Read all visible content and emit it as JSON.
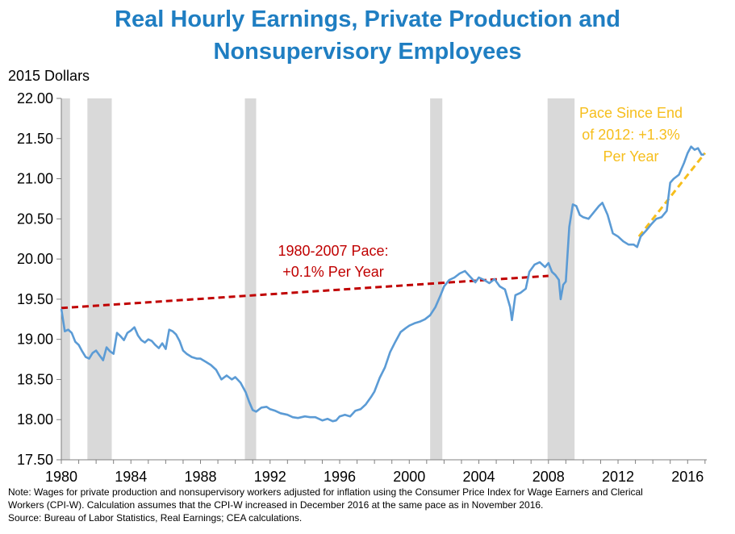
{
  "chart_data": {
    "type": "line",
    "title_lines": [
      "Real Hourly Earnings, Private Production and",
      "Nonsupervisory Employees"
    ],
    "ylabel": "2015 Dollars",
    "xlim": [
      1980,
      2017.1
    ],
    "ylim": [
      17.5,
      22.0
    ],
    "x_ticks": [
      "1980",
      "1984",
      "1988",
      "1992",
      "1996",
      "2000",
      "2004",
      "2008",
      "2012",
      "2016"
    ],
    "y_ticks": [
      "17.50",
      "18.00",
      "18.50",
      "19.00",
      "19.50",
      "20.00",
      "20.50",
      "21.00",
      "21.50",
      "22.00"
    ],
    "recessions": [
      [
        1980.0,
        1980.5
      ],
      [
        1981.5,
        1982.9
      ],
      [
        1990.55,
        1991.2
      ],
      [
        2001.2,
        2001.9
      ],
      [
        2007.95,
        2009.5
      ]
    ],
    "series": [
      {
        "color": "#5b9bd5",
        "x": [
          1980.0,
          1980.2,
          1980.4,
          1980.6,
          1980.8,
          1981.0,
          1981.2,
          1981.4,
          1981.6,
          1981.8,
          1982.0,
          1982.2,
          1982.4,
          1982.6,
          1982.8,
          1983.0,
          1983.2,
          1983.4,
          1983.6,
          1983.8,
          1984.0,
          1984.2,
          1984.4,
          1984.6,
          1984.8,
          1985.0,
          1985.2,
          1985.4,
          1985.6,
          1985.8,
          1986.0,
          1986.2,
          1986.4,
          1986.6,
          1986.8,
          1987.0,
          1987.2,
          1987.5,
          1987.8,
          1988.0,
          1988.3,
          1988.6,
          1988.9,
          1989.2,
          1989.5,
          1989.8,
          1990.0,
          1990.3,
          1990.6,
          1990.8,
          1991.0,
          1991.2,
          1991.5,
          1991.8,
          1992.0,
          1992.3,
          1992.6,
          1993.0,
          1993.3,
          1993.6,
          1994.0,
          1994.3,
          1994.6,
          1995.0,
          1995.3,
          1995.6,
          1995.8,
          1996.0,
          1996.3,
          1996.6,
          1996.9,
          1997.2,
          1997.5,
          1997.8,
          1998.0,
          1998.3,
          1998.6,
          1998.9,
          1999.2,
          1999.5,
          1999.8,
          2000.0,
          2000.3,
          2000.6,
          2000.9,
          2001.2,
          2001.5,
          2001.8,
          2002.0,
          2002.3,
          2002.6,
          2002.9,
          2003.2,
          2003.5,
          2003.8,
          2004.0,
          2004.3,
          2004.6,
          2004.9,
          2005.2,
          2005.5,
          2005.8,
          2005.9,
          2006.1,
          2006.4,
          2006.7,
          2006.9,
          2007.2,
          2007.5,
          2007.8,
          2008.0,
          2008.2,
          2008.4,
          2008.6,
          2008.7,
          2008.85,
          2009.0,
          2009.2,
          2009.4,
          2009.6,
          2009.8,
          2010.0,
          2010.3,
          2010.6,
          2010.9,
          2011.1,
          2011.4,
          2011.7,
          2012.0,
          2012.3,
          2012.6,
          2012.9,
          2013.1,
          2013.3,
          2013.6,
          2013.9,
          2014.2,
          2014.5,
          2014.8,
          2015.0,
          2015.2,
          2015.5,
          2015.8,
          2016.0,
          2016.2,
          2016.4,
          2016.6,
          2016.8,
          2016.95
        ],
        "values": [
          19.38,
          19.1,
          19.12,
          19.08,
          18.97,
          18.93,
          18.85,
          18.78,
          18.76,
          18.83,
          18.86,
          18.8,
          18.74,
          18.9,
          18.85,
          18.82,
          19.08,
          19.04,
          18.99,
          19.08,
          19.11,
          19.15,
          19.05,
          18.99,
          18.96,
          19.0,
          18.98,
          18.93,
          18.89,
          18.95,
          18.88,
          19.12,
          19.1,
          19.06,
          18.98,
          18.86,
          18.82,
          18.78,
          18.76,
          18.76,
          18.72,
          18.68,
          18.62,
          18.5,
          18.55,
          18.5,
          18.53,
          18.46,
          18.34,
          18.22,
          18.12,
          18.1,
          18.15,
          18.16,
          18.13,
          18.11,
          18.08,
          18.06,
          18.03,
          18.02,
          18.04,
          18.03,
          18.03,
          17.99,
          18.01,
          17.98,
          17.99,
          18.04,
          18.06,
          18.04,
          18.11,
          18.13,
          18.19,
          18.28,
          18.35,
          18.52,
          18.65,
          18.84,
          18.97,
          19.09,
          19.14,
          19.17,
          19.2,
          19.22,
          19.25,
          19.3,
          19.4,
          19.55,
          19.66,
          19.74,
          19.77,
          19.82,
          19.85,
          19.78,
          19.71,
          19.77,
          19.74,
          19.7,
          19.75,
          19.66,
          19.62,
          19.4,
          19.24,
          19.55,
          19.58,
          19.63,
          19.84,
          19.93,
          19.96,
          19.9,
          19.95,
          19.84,
          19.8,
          19.74,
          19.5,
          19.68,
          19.72,
          20.4,
          20.68,
          20.66,
          20.55,
          20.52,
          20.5,
          20.58,
          20.66,
          20.7,
          20.55,
          20.32,
          20.28,
          20.22,
          20.18,
          20.18,
          20.15,
          20.28,
          20.35,
          20.43,
          20.5,
          20.52,
          20.6,
          20.95,
          21.0,
          21.05,
          21.2,
          21.32,
          21.4,
          21.36,
          21.38,
          21.3,
          21.3
        ]
      }
    ],
    "trendlines": [
      {
        "label_lines": [
          "1980-2007 Pace:",
          "+0.1% Per Year"
        ],
        "color": "#c00000",
        "x": [
          1980.0,
          2008.0
        ],
        "y": [
          19.39,
          19.79
        ]
      },
      {
        "label_lines": [
          "Pace Since End",
          "of 2012: +1.3%",
          "Per Year"
        ],
        "color": "#f6be1c",
        "x": [
          2013.2,
          2017.0
        ],
        "y": [
          20.28,
          21.32
        ]
      }
    ]
  },
  "note_lines": [
    "Note: Wages for private production and nonsupervisory workers adjusted for inflation using the Consumer Price Index for Wage Earners and Clerical",
    "Workers (CPI-W). Calculation assumes that the CPI-W increased in December 2016 at the same pace as in November 2016.",
    "Source: Bureau of Labor Statistics, Real Earnings; CEA calculations."
  ]
}
